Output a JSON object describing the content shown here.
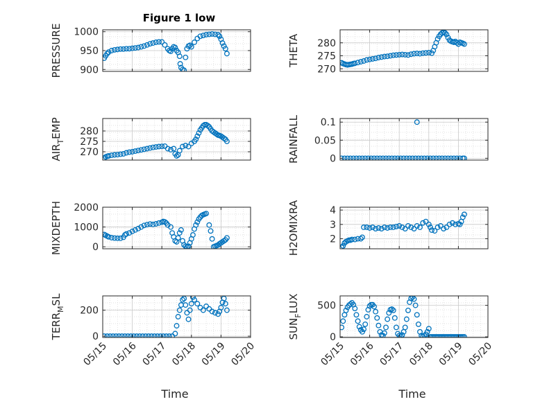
{
  "figure": {
    "title": "Figure 1 low",
    "xlabel": "Time",
    "marker_color": "#0072BD"
  },
  "x_ticks": [
    "05/15",
    "05/16",
    "05/17",
    "05/18",
    "05/19",
    "05/20"
  ],
  "chart_data": [
    {
      "type": "scatter",
      "ylabel": "PRESSURE",
      "ylabel_sub": "",
      "ylabel_rest": "",
      "ylim": [
        895,
        1005
      ],
      "yticks": [
        900,
        950,
        1000
      ],
      "title": "Figure 1 low",
      "xlabel": "",
      "series": [
        {
          "x": [
            0.05,
            0.1,
            0.15,
            0.2,
            0.3,
            0.4,
            0.5,
            0.6,
            0.7,
            0.8,
            0.9,
            1.0,
            1.1,
            1.2,
            1.3,
            1.4,
            1.5,
            1.6,
            1.7,
            1.8,
            1.9,
            2.0,
            2.1,
            2.2,
            2.25,
            2.3,
            2.35,
            2.4,
            2.45,
            2.5,
            2.55,
            2.6,
            2.62,
            2.65,
            2.7,
            2.75,
            2.8,
            2.85,
            2.9,
            2.95,
            3.0,
            3.1,
            3.2,
            3.3,
            3.4,
            3.5,
            3.6,
            3.7,
            3.8,
            3.9,
            3.95,
            4.0,
            4.05,
            4.1,
            4.15,
            4.2
          ],
          "y": [
            930,
            936,
            942,
            946,
            950,
            952,
            953,
            954,
            954,
            955,
            955,
            956,
            957,
            958,
            960,
            962,
            965,
            968,
            970,
            972,
            973,
            973,
            965,
            955,
            950,
            948,
            955,
            960,
            958,
            950,
            945,
            935,
            915,
            905,
            900,
            898,
            932,
            955,
            962,
            964,
            960,
            972,
            982,
            988,
            990,
            992,
            993,
            994,
            993,
            992,
            988,
            980,
            970,
            962,
            955,
            942
          ]
        }
      ]
    },
    {
      "type": "scatter",
      "ylabel": "THETA",
      "ylabel_sub": "",
      "ylabel_rest": "",
      "ylim": [
        269,
        285
      ],
      "yticks": [
        270,
        275,
        280
      ],
      "title": "",
      "xlabel": "",
      "series": [
        {
          "x": [
            0.05,
            0.1,
            0.15,
            0.2,
            0.25,
            0.3,
            0.35,
            0.4,
            0.45,
            0.5,
            0.6,
            0.7,
            0.8,
            0.9,
            1.0,
            1.1,
            1.2,
            1.3,
            1.4,
            1.5,
            1.6,
            1.7,
            1.8,
            1.9,
            2.0,
            2.1,
            2.2,
            2.3,
            2.4,
            2.5,
            2.6,
            2.7,
            2.8,
            2.9,
            3.0,
            3.1,
            3.15,
            3.2,
            3.25,
            3.3,
            3.35,
            3.4,
            3.45,
            3.5,
            3.55,
            3.6,
            3.65,
            3.7,
            3.75,
            3.8,
            3.85,
            3.9,
            3.95,
            4.0,
            4.05,
            4.1,
            4.15,
            4.2
          ],
          "y": [
            272.3,
            272.0,
            271.8,
            271.6,
            271.5,
            271.6,
            271.7,
            271.8,
            272.0,
            272.1,
            272.4,
            272.7,
            273.0,
            273.4,
            273.6,
            273.8,
            274.0,
            274.3,
            274.5,
            274.7,
            274.8,
            275.0,
            275.2,
            275.3,
            275.4,
            275.5,
            275.4,
            275.3,
            275.6,
            275.8,
            275.9,
            275.8,
            276.0,
            276.1,
            276.2,
            276.0,
            277.0,
            278.5,
            280.0,
            281.5,
            282.5,
            283.3,
            283.8,
            284.0,
            283.8,
            283.2,
            282.0,
            281.0,
            280.6,
            280.4,
            280.2,
            280.5,
            280.0,
            279.5,
            280.2,
            280.0,
            279.8,
            279.5
          ]
        }
      ]
    },
    {
      "type": "scatter",
      "ylabel": "AIR",
      "ylabel_sub": "T",
      "ylabel_rest": "EMP",
      "ylim": [
        266,
        286
      ],
      "yticks": [
        270,
        275,
        280
      ],
      "title": "",
      "xlabel": "",
      "series": [
        {
          "x": [
            0.05,
            0.1,
            0.15,
            0.2,
            0.3,
            0.4,
            0.5,
            0.6,
            0.7,
            0.8,
            0.9,
            1.0,
            1.1,
            1.2,
            1.3,
            1.4,
            1.5,
            1.6,
            1.7,
            1.8,
            1.9,
            2.0,
            2.1,
            2.2,
            2.3,
            2.4,
            2.45,
            2.5,
            2.55,
            2.6,
            2.7,
            2.8,
            2.9,
            3.0,
            3.1,
            3.15,
            3.2,
            3.25,
            3.3,
            3.35,
            3.4,
            3.45,
            3.5,
            3.55,
            3.6,
            3.65,
            3.7,
            3.75,
            3.8,
            3.85,
            3.9,
            3.95,
            4.0,
            4.05,
            4.1,
            4.15,
            4.2
          ],
          "y": [
            267.0,
            267.5,
            267.8,
            268.0,
            268.3,
            268.5,
            268.6,
            268.8,
            269.0,
            269.5,
            269.8,
            270.0,
            270.3,
            270.6,
            270.9,
            271.2,
            271.5,
            271.8,
            272.1,
            272.3,
            272.5,
            272.6,
            272.7,
            271.5,
            271.0,
            271.5,
            269.0,
            268.0,
            268.5,
            270.5,
            272.5,
            273.0,
            272.5,
            274.0,
            275.0,
            276.0,
            277.5,
            279.0,
            280.5,
            281.5,
            282.5,
            283.0,
            283.0,
            282.6,
            282.0,
            281.0,
            280.0,
            279.5,
            279.0,
            278.5,
            278.0,
            277.8,
            277.5,
            277.0,
            276.5,
            276.0,
            275.0
          ]
        }
      ]
    },
    {
      "type": "scatter",
      "ylabel": "RAINFALL",
      "ylabel_sub": "",
      "ylabel_rest": "",
      "ylim": [
        -0.005,
        0.11
      ],
      "yticks": [
        0,
        0.05,
        0.1
      ],
      "title": "",
      "xlabel": "",
      "series": [
        {
          "x": [
            0.05,
            0.15,
            0.25,
            0.35,
            0.45,
            0.55,
            0.65,
            0.75,
            0.85,
            0.95,
            1.05,
            1.15,
            1.25,
            1.35,
            1.45,
            1.55,
            1.65,
            1.75,
            1.85,
            1.95,
            2.05,
            2.15,
            2.25,
            2.35,
            2.45,
            2.55,
            2.65,
            2.75,
            2.85,
            2.95,
            3.05,
            3.15,
            3.25,
            3.35,
            3.45,
            3.55,
            3.65,
            3.75,
            3.85,
            3.95,
            4.05,
            4.15,
            4.2,
            2.6
          ],
          "y": [
            0,
            0,
            0,
            0,
            0,
            0,
            0,
            0,
            0,
            0,
            0,
            0,
            0,
            0,
            0,
            0,
            0,
            0,
            0,
            0,
            0,
            0,
            0,
            0,
            0,
            0,
            0,
            0,
            0,
            0,
            0,
            0,
            0,
            0,
            0,
            0,
            0,
            0,
            0,
            0,
            0,
            0,
            0,
            0.1
          ]
        }
      ]
    },
    {
      "type": "scatter",
      "ylabel": "MIXDEPTH",
      "ylabel_sub": "",
      "ylabel_rest": "",
      "ylim": [
        -100,
        2000
      ],
      "yticks": [
        0,
        1000,
        2000
      ],
      "title": "",
      "xlabel": "",
      "series": [
        {
          "x": [
            0.05,
            0.1,
            0.15,
            0.2,
            0.3,
            0.4,
            0.5,
            0.6,
            0.7,
            0.75,
            0.8,
            0.9,
            1.0,
            1.1,
            1.2,
            1.3,
            1.4,
            1.5,
            1.6,
            1.7,
            1.8,
            1.9,
            2.0,
            2.05,
            2.1,
            2.15,
            2.2,
            2.3,
            2.35,
            2.4,
            2.45,
            2.5,
            2.55,
            2.6,
            2.65,
            2.7,
            2.75,
            2.8,
            2.85,
            2.9,
            2.95,
            3.0,
            3.05,
            3.1,
            3.15,
            3.2,
            3.25,
            3.3,
            3.35,
            3.4,
            3.45,
            3.5,
            3.6,
            3.65,
            3.7,
            3.75,
            3.8,
            3.85,
            3.9,
            3.95,
            4.0,
            4.05,
            4.1,
            4.15,
            4.2
          ],
          "y": [
            620,
            580,
            540,
            500,
            460,
            440,
            430,
            430,
            480,
            600,
            650,
            700,
            780,
            850,
            920,
            1000,
            1080,
            1120,
            1150,
            1130,
            1160,
            1200,
            1240,
            1280,
            1260,
            1200,
            1100,
            1000,
            700,
            500,
            300,
            250,
            450,
            700,
            850,
            300,
            100,
            30,
            0,
            30,
            200,
            400,
            600,
            900,
            1100,
            1250,
            1400,
            1500,
            1580,
            1620,
            1650,
            1680,
            1100,
            800,
            400,
            0,
            30,
            60,
            90,
            150,
            200,
            250,
            300,
            350,
            450
          ]
        }
      ]
    },
    {
      "type": "scatter",
      "ylabel": "H2OMIXRA",
      "ylabel_sub": "",
      "ylabel_rest": "",
      "ylim": [
        1.3,
        4.2
      ],
      "yticks": [
        2,
        3,
        4
      ],
      "title": "",
      "xlabel": "",
      "series": [
        {
          "x": [
            0.05,
            0.1,
            0.15,
            0.2,
            0.25,
            0.3,
            0.35,
            0.4,
            0.5,
            0.6,
            0.7,
            0.75,
            0.8,
            0.9,
            1.0,
            1.1,
            1.2,
            1.3,
            1.4,
            1.5,
            1.6,
            1.7,
            1.8,
            1.9,
            2.0,
            2.1,
            2.2,
            2.3,
            2.4,
            2.5,
            2.6,
            2.7,
            2.8,
            2.9,
            3.0,
            3.05,
            3.1,
            3.2,
            3.3,
            3.4,
            3.5,
            3.6,
            3.7,
            3.8,
            3.9,
            4.0,
            4.05,
            4.1,
            4.15,
            4.2
          ],
          "y": [
            1.4,
            1.5,
            1.7,
            1.8,
            1.85,
            1.9,
            1.9,
            1.95,
            1.95,
            2.0,
            2.0,
            2.1,
            2.8,
            2.8,
            2.75,
            2.8,
            2.7,
            2.75,
            2.7,
            2.8,
            2.75,
            2.8,
            2.8,
            2.85,
            2.9,
            2.8,
            2.7,
            2.9,
            2.8,
            2.7,
            2.9,
            2.8,
            3.1,
            3.2,
            3.0,
            2.8,
            2.6,
            2.55,
            2.8,
            2.9,
            2.7,
            2.8,
            3.0,
            3.1,
            3.0,
            3.05,
            3.0,
            3.2,
            3.5,
            3.7
          ]
        }
      ]
    },
    {
      "type": "scatter",
      "ylabel": "TERR",
      "ylabel_sub": "M",
      "ylabel_rest": "SL",
      "ylim": [
        -10,
        310
      ],
      "yticks": [
        0,
        200
      ],
      "title": "",
      "xlabel": "",
      "series": [
        {
          "x": [
            0.05,
            0.15,
            0.25,
            0.35,
            0.45,
            0.55,
            0.65,
            0.75,
            0.85,
            0.95,
            1.05,
            1.15,
            1.25,
            1.35,
            1.45,
            1.55,
            1.65,
            1.75,
            1.85,
            1.95,
            2.05,
            2.15,
            2.25,
            2.35,
            2.45,
            2.5,
            2.55,
            2.6,
            2.65,
            2.7,
            2.75,
            2.8,
            2.85,
            2.9,
            2.95,
            3.0,
            3.05,
            3.1,
            3.2,
            3.3,
            3.4,
            3.5,
            3.6,
            3.7,
            3.8,
            3.9,
            3.95,
            4.0,
            4.05,
            4.1,
            4.15,
            4.2
          ],
          "y": [
            0,
            0,
            0,
            0,
            0,
            0,
            0,
            0,
            0,
            0,
            0,
            0,
            0,
            0,
            0,
            0,
            0,
            0,
            0,
            0,
            0,
            0,
            0,
            0,
            20,
            80,
            150,
            200,
            240,
            280,
            290,
            240,
            180,
            130,
            200,
            250,
            300,
            280,
            250,
            220,
            200,
            230,
            210,
            190,
            180,
            170,
            190,
            220,
            260,
            290,
            250,
            200
          ]
        }
      ]
    },
    {
      "type": "scatter",
      "ylabel": "SUN",
      "ylabel_sub": "F",
      "ylabel_rest": "LUX",
      "ylim": [
        -10,
        650
      ],
      "yticks": [
        0,
        500
      ],
      "title": "",
      "xlabel": "",
      "series": [
        {
          "x": [
            0.05,
            0.1,
            0.15,
            0.2,
            0.25,
            0.3,
            0.35,
            0.4,
            0.45,
            0.5,
            0.55,
            0.6,
            0.65,
            0.7,
            0.75,
            0.8,
            0.85,
            0.9,
            0.95,
            1.0,
            1.05,
            1.1,
            1.15,
            1.2,
            1.25,
            1.3,
            1.35,
            1.4,
            1.45,
            1.5,
            1.55,
            1.6,
            1.65,
            1.7,
            1.75,
            1.8,
            1.85,
            1.9,
            1.95,
            2.0,
            2.05,
            2.1,
            2.15,
            2.2,
            2.25,
            2.3,
            2.35,
            2.4,
            2.45,
            2.5,
            2.55,
            2.6,
            2.65,
            2.7,
            2.75,
            2.8,
            2.85,
            2.9,
            2.95,
            3.0,
            3.05,
            3.1,
            3.15,
            3.2,
            3.25,
            3.3,
            3.35,
            3.4,
            3.45,
            3.5,
            3.55,
            3.6,
            3.65,
            3.7,
            3.75,
            3.8,
            3.85,
            3.9,
            3.95,
            4.0,
            4.05,
            4.1,
            4.15,
            4.2
          ],
          "y": [
            150,
            250,
            350,
            420,
            470,
            500,
            520,
            540,
            510,
            450,
            350,
            250,
            160,
            110,
            80,
            120,
            200,
            320,
            430,
            490,
            510,
            510,
            480,
            400,
            300,
            180,
            80,
            30,
            20,
            60,
            150,
            280,
            380,
            430,
            440,
            420,
            300,
            150,
            50,
            20,
            10,
            30,
            80,
            150,
            280,
            420,
            550,
            610,
            630,
            600,
            500,
            350,
            200,
            80,
            20,
            10,
            20,
            40,
            80,
            130,
            0,
            0,
            0,
            0,
            0,
            0,
            0,
            0,
            0,
            0,
            0,
            0,
            0,
            0,
            0,
            0,
            0,
            0,
            0,
            0,
            0,
            0,
            0,
            0
          ]
        }
      ]
    }
  ]
}
